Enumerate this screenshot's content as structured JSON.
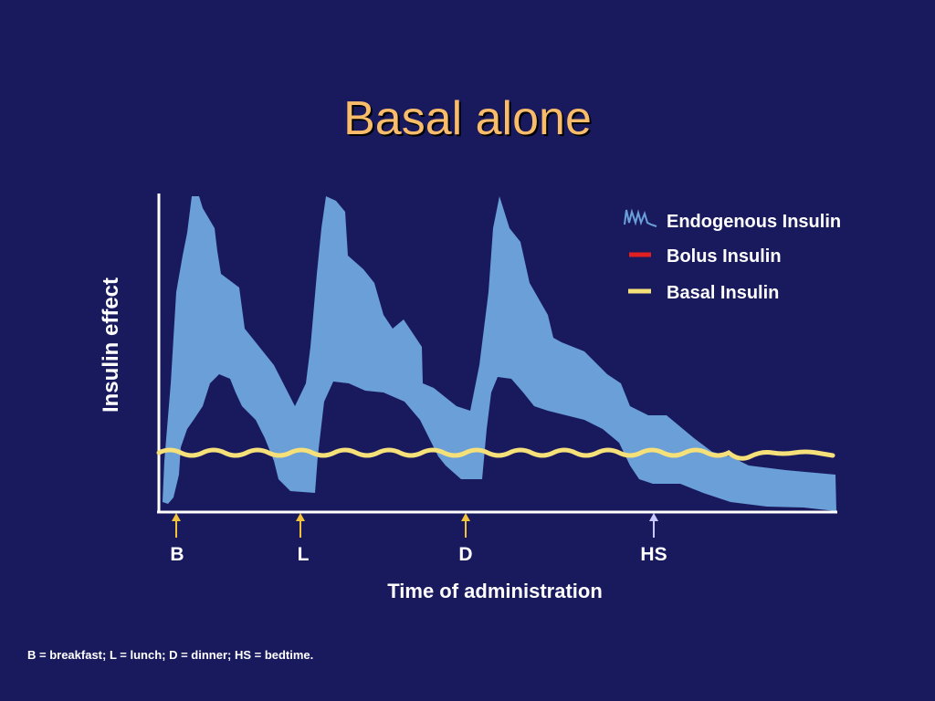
{
  "title": "Basal alone",
  "y_axis_label": "Insulin effect",
  "x_axis_label": "Time of administration",
  "legend": [
    {
      "label": "Endogenous Insulin",
      "color": "#6A9FD8",
      "icon": "spiky-wave-icon"
    },
    {
      "label": "Bolus Insulin",
      "color": "#E02020",
      "icon": "red-dash-icon"
    },
    {
      "label": "Basal Insulin",
      "color": "#F5E07A",
      "icon": "yellow-dash-icon"
    }
  ],
  "time_markers": [
    {
      "label": "B",
      "arrow_color": "#F2C23A"
    },
    {
      "label": "L",
      "arrow_color": "#F2C23A"
    },
    {
      "label": "D",
      "arrow_color": "#F2C23A"
    },
    {
      "label": "HS",
      "arrow_color": "#C8C8FF"
    }
  ],
  "footnote": "B = breakfast; L = lunch; D = dinner; HS = bedtime.",
  "colors": {
    "background": "#191A5E",
    "title": "#F9BC6A",
    "axis": "#FFFFFF",
    "endogenous_band": "#6A9FD8",
    "basal_line": "#F5E07A"
  }
}
